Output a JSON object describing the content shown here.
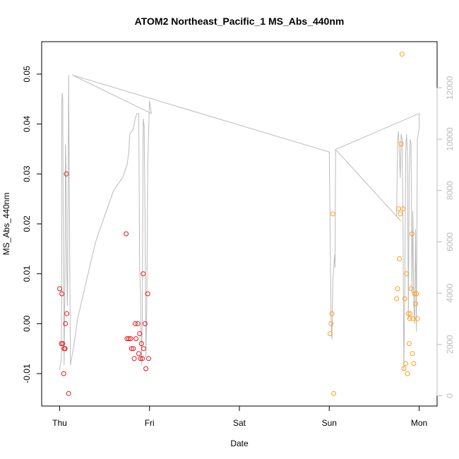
{
  "chart_data": {
    "type": "scatter",
    "title": "ATOM2 Northeast_Pacific_1 MS_Abs_440nm",
    "xlabel": "Date",
    "ylabel": "MS_Abs_440nm",
    "x_axis": {
      "unit": "days",
      "range": [
        -0.2,
        4.2
      ],
      "ticks": [
        {
          "value": 0,
          "label": "Thu"
        },
        {
          "value": 1,
          "label": "Fri"
        },
        {
          "value": 2,
          "label": "Sat"
        },
        {
          "value": 3,
          "label": "Sun"
        },
        {
          "value": 4,
          "label": "Mon"
        }
      ]
    },
    "y_axis": {
      "range": [
        -0.0165,
        0.0565
      ],
      "ticks": [
        {
          "value": -0.01,
          "label": "-0.01"
        },
        {
          "value": 0.0,
          "label": "0.00"
        },
        {
          "value": 0.01,
          "label": "0.01"
        },
        {
          "value": 0.02,
          "label": "0.02"
        },
        {
          "value": 0.03,
          "label": "0.03"
        },
        {
          "value": 0.04,
          "label": "0.04"
        },
        {
          "value": 0.05,
          "label": "0.05"
        }
      ]
    },
    "y2_axis": {
      "range": [
        -400,
        13800
      ],
      "color": "#bbbbbb",
      "ticks": [
        {
          "value": 0,
          "label": "0"
        },
        {
          "value": 2000,
          "label": "2000"
        },
        {
          "value": 4000,
          "label": "4000"
        },
        {
          "value": 6000,
          "label": "6000"
        },
        {
          "value": 8000,
          "label": "8000"
        },
        {
          "value": 10000,
          "label": "10000"
        },
        {
          "value": 12000,
          "label": "12000"
        }
      ]
    },
    "grid": false,
    "legend": "none",
    "series": [
      {
        "color": "#e41a1c",
        "marker": "open-circle",
        "points": [
          [
            0.0,
            0.007
          ],
          [
            0.02,
            -0.004
          ],
          [
            0.025,
            0.006
          ],
          [
            0.035,
            -0.004
          ],
          [
            0.045,
            -0.01
          ],
          [
            0.05,
            -0.005
          ],
          [
            0.06,
            -0.005
          ],
          [
            0.065,
            0.0
          ],
          [
            0.075,
            0.03
          ],
          [
            0.08,
            0.002
          ],
          [
            0.1,
            -0.014
          ],
          [
            0.74,
            0.018
          ],
          [
            0.75,
            -0.003
          ],
          [
            0.77,
            -0.003
          ],
          [
            0.79,
            -0.003
          ],
          [
            0.8,
            -0.005
          ],
          [
            0.82,
            -0.005
          ],
          [
            0.83,
            -0.007
          ],
          [
            0.84,
            0.0
          ],
          [
            0.85,
            -0.003
          ],
          [
            0.87,
            0.0
          ],
          [
            0.88,
            -0.006
          ],
          [
            0.89,
            -0.002
          ],
          [
            0.9,
            -0.007
          ],
          [
            0.91,
            -0.004
          ],
          [
            0.92,
            -0.007
          ],
          [
            0.93,
            0.01
          ],
          [
            0.935,
            -0.005
          ],
          [
            0.95,
            0.0
          ],
          [
            0.96,
            -0.009
          ],
          [
            0.98,
            0.006
          ],
          [
            0.99,
            -0.007
          ]
        ]
      },
      {
        "color": "#ff9f1c",
        "marker": "open-circle",
        "points": [
          [
            3.01,
            -0.002
          ],
          [
            3.02,
            0.0
          ],
          [
            3.03,
            0.002
          ],
          [
            3.04,
            0.022
          ],
          [
            3.05,
            -0.014
          ],
          [
            3.75,
            0.005
          ],
          [
            3.76,
            0.007
          ],
          [
            3.77,
            0.023
          ],
          [
            3.78,
            0.013
          ],
          [
            3.79,
            0.022
          ],
          [
            3.8,
            0.036
          ],
          [
            3.81,
            0.054
          ],
          [
            3.82,
            0.023
          ],
          [
            3.83,
            -0.009
          ],
          [
            3.84,
            0.005
          ],
          [
            3.85,
            -0.008
          ],
          [
            3.86,
            0.01
          ],
          [
            3.87,
            -0.01
          ],
          [
            3.88,
            0.002
          ],
          [
            3.89,
            -0.004
          ],
          [
            3.895,
            0.001
          ],
          [
            3.9,
            0.002
          ],
          [
            3.91,
            0.007
          ],
          [
            3.92,
            0.018
          ],
          [
            3.925,
            -0.006
          ],
          [
            3.93,
            0.001
          ],
          [
            3.94,
            -0.008
          ],
          [
            3.95,
            0.006
          ],
          [
            3.96,
            0.004
          ],
          [
            3.97,
            0.006
          ],
          [
            3.98,
            0.001
          ]
        ]
      }
    ],
    "secondary_series": {
      "color": "#bbbbbb",
      "type": "line",
      "points": [
        [
          0.0,
          1000
        ],
        [
          0.02,
          1500
        ],
        [
          0.025,
          11500
        ],
        [
          0.03,
          11800
        ],
        [
          0.035,
          11500
        ],
        [
          0.04,
          7000
        ],
        [
          0.05,
          1200
        ],
        [
          0.06,
          5000
        ],
        [
          0.065,
          9800
        ],
        [
          0.07,
          9000
        ],
        [
          0.08,
          5000
        ],
        [
          0.085,
          3500
        ],
        [
          0.09,
          4500
        ],
        [
          0.1,
          12500
        ],
        [
          0.12,
          1200
        ],
        [
          0.16,
          2000
        ],
        [
          0.2,
          3000
        ],
        [
          0.3,
          4500
        ],
        [
          0.4,
          6000
        ],
        [
          0.5,
          7000
        ],
        [
          0.6,
          8000
        ],
        [
          0.7,
          8500
        ],
        [
          0.75,
          9000
        ],
        [
          0.77,
          9500
        ],
        [
          0.78,
          10200
        ],
        [
          0.8,
          10300
        ],
        [
          0.82,
          10400
        ],
        [
          0.84,
          10800
        ],
        [
          0.86,
          11000
        ],
        [
          0.88,
          11000
        ],
        [
          0.89,
          5000
        ],
        [
          0.9,
          4000
        ],
        [
          0.91,
          1200
        ],
        [
          0.92,
          3000
        ],
        [
          0.93,
          10800
        ],
        [
          0.94,
          10500
        ],
        [
          0.95,
          7000
        ],
        [
          0.96,
          1500
        ],
        [
          0.97,
          3500
        ],
        [
          0.98,
          9000
        ],
        [
          1.0,
          11500
        ],
        [
          1.02,
          11000
        ],
        [
          0.14,
          12500
        ],
        [
          3.0,
          9500
        ],
        [
          3.02,
          3000
        ],
        [
          3.03,
          2200
        ],
        [
          3.04,
          4500
        ],
        [
          3.06,
          5500
        ],
        [
          3.065,
          5000
        ],
        [
          3.07,
          9600
        ],
        [
          3.8,
          6800
        ],
        [
          3.75,
          7000
        ],
        [
          3.76,
          10000
        ],
        [
          3.77,
          10300
        ],
        [
          3.78,
          9500
        ],
        [
          3.79,
          8500
        ],
        [
          3.8,
          10200
        ],
        [
          3.81,
          10000
        ],
        [
          3.82,
          7000
        ],
        [
          3.83,
          1000
        ],
        [
          3.84,
          4000
        ],
        [
          3.85,
          9500
        ],
        [
          3.86,
          10200
        ],
        [
          3.87,
          9500
        ],
        [
          3.88,
          3000
        ],
        [
          3.89,
          8500
        ],
        [
          3.9,
          10000
        ],
        [
          3.91,
          9800
        ],
        [
          3.92,
          4000
        ],
        [
          3.93,
          7200
        ],
        [
          3.94,
          3500
        ],
        [
          3.95,
          2800
        ],
        [
          3.96,
          6500
        ],
        [
          3.97,
          2500
        ],
        [
          3.98,
          10000
        ],
        [
          4.0,
          10400
        ],
        [
          4.0,
          11000
        ],
        [
          3.07,
          9600
        ]
      ]
    }
  }
}
